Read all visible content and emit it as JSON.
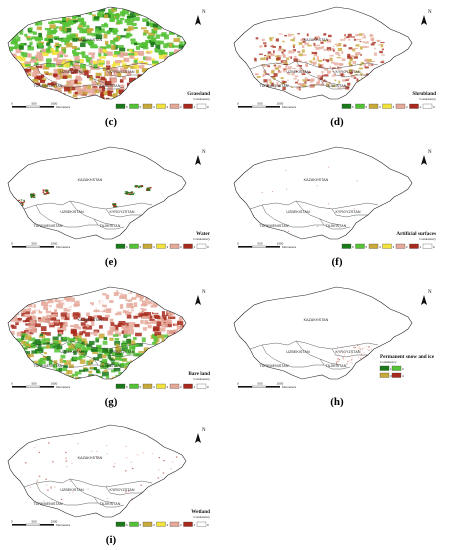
{
  "labels": {
    "kazakhstan": "KAZAKHSTAN",
    "uzbekistan": "UZBEKISTAN",
    "kyrgyzstan": "KYRGYZSTAN",
    "turkmenistan": "TURKMENISTAN",
    "tajikistan": "TAJIKISTAN",
    "consistency": "Consistency",
    "north": "N",
    "scale_ticks": [
      "0",
      "500",
      "1000"
    ],
    "scale_unit": "Kilometers"
  },
  "legend": {
    "values": [
      "6",
      "5",
      "4",
      "3",
      "2",
      "1",
      "0"
    ],
    "colors": [
      "#1a7a1a",
      "#55c235",
      "#c8a93a",
      "#f2e23c",
      "#e5a99a",
      "#a82a1c",
      "#ffffff"
    ]
  },
  "snow_legend": {
    "values": [
      "1",
      "2",
      "3",
      "4"
    ],
    "colors": [
      "#1a7a1a",
      "#55c235",
      "#c8a93a",
      "#a82a1c"
    ]
  },
  "panels": [
    {
      "id": "c",
      "label": "(c)",
      "theme": "Grassland",
      "fill": "grass"
    },
    {
      "id": "d",
      "label": "(d)",
      "theme": "Shrubland",
      "fill": "shrub"
    },
    {
      "id": "e",
      "label": "(e)",
      "theme": "Water",
      "fill": "water"
    },
    {
      "id": "f",
      "label": "(f)",
      "theme": "Artificial surfaces",
      "fill": "urban"
    },
    {
      "id": "g",
      "label": "(g)",
      "theme": "Bare land",
      "fill": "bare"
    },
    {
      "id": "h",
      "label": "(h)",
      "theme": "Permanent snow and ice",
      "fill": "snow"
    },
    {
      "id": "i",
      "label": "(i)",
      "theme": "Wetland",
      "fill": "wetland"
    }
  ]
}
